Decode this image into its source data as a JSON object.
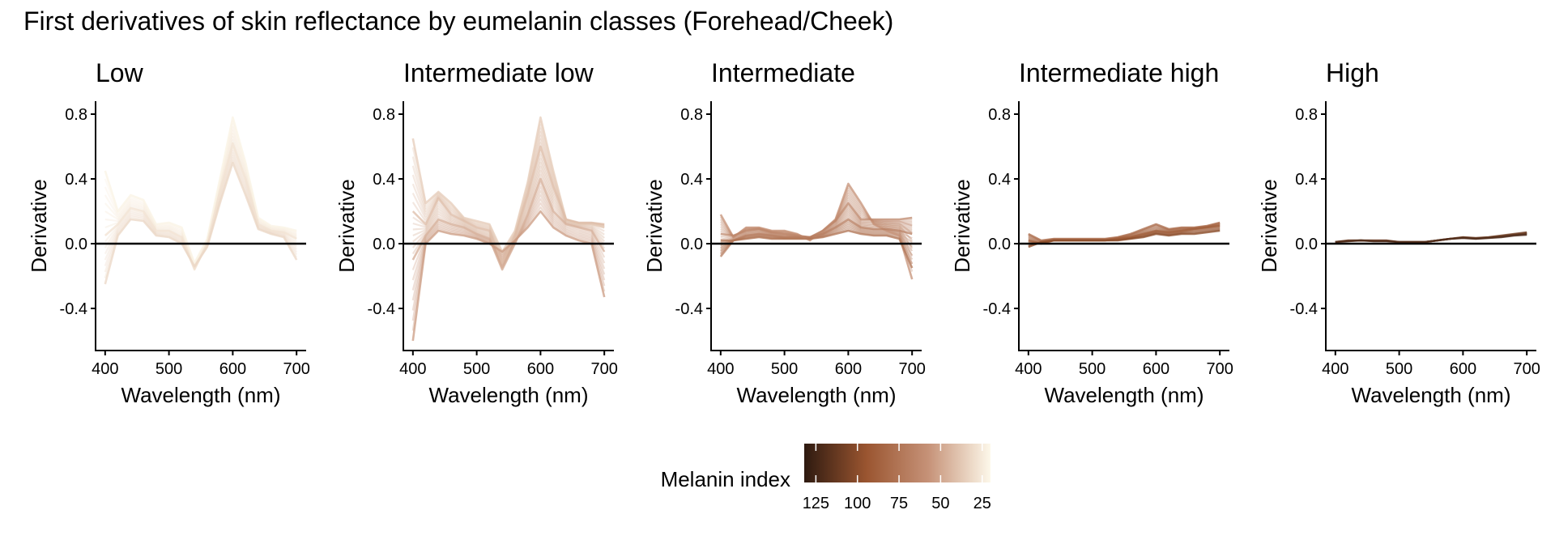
{
  "chart_data": {
    "type": "line",
    "title": "First derivatives of skin reflectance by eumelanin classes (Forehead/Cheek)",
    "xlabel": "Wavelength (nm)",
    "ylabel": "Derivative",
    "xlim": [
      385,
      715
    ],
    "ylim": [
      -0.66,
      0.88
    ],
    "x_ticks": [
      400,
      500,
      600,
      700
    ],
    "y_ticks": [
      -0.4,
      0.0,
      0.4,
      0.8
    ],
    "y_tick_labels": [
      "-0.4",
      "0.0",
      "0.4",
      "0.8"
    ],
    "reference_line_y": 0.0,
    "grid": false,
    "x_grid": [
      400,
      420,
      440,
      460,
      480,
      500,
      520,
      540,
      560,
      580,
      600,
      620,
      640,
      660,
      680,
      700
    ],
    "panels": [
      {
        "title": "Low",
        "melanin_range": [
          20,
          35
        ],
        "series": [
          {
            "melanin": 22,
            "values": [
              0.45,
              0.2,
              0.3,
              0.27,
              0.12,
              0.13,
              0.1,
              -0.12,
              0.03,
              0.4,
              0.78,
              0.5,
              0.16,
              0.11,
              0.1,
              0.08
            ]
          },
          {
            "melanin": 28,
            "values": [
              0.05,
              0.12,
              0.22,
              0.2,
              0.08,
              0.08,
              0.04,
              -0.16,
              0.0,
              0.32,
              0.62,
              0.4,
              0.12,
              0.08,
              0.07,
              0.03
            ]
          },
          {
            "melanin": 32,
            "values": [
              -0.25,
              0.05,
              0.15,
              0.14,
              0.05,
              0.04,
              0.0,
              -0.14,
              -0.02,
              0.25,
              0.5,
              0.3,
              0.09,
              0.06,
              0.04,
              -0.1
            ]
          }
        ]
      },
      {
        "title": "Intermediate low",
        "melanin_range": [
          35,
          55
        ],
        "series": [
          {
            "melanin": 36,
            "values": [
              0.65,
              0.25,
              0.32,
              0.25,
              0.16,
              0.14,
              0.12,
              -0.05,
              0.08,
              0.38,
              0.78,
              0.45,
              0.15,
              0.12,
              0.12,
              0.1
            ]
          },
          {
            "melanin": 42,
            "values": [
              0.2,
              0.12,
              0.28,
              0.18,
              0.14,
              0.1,
              0.08,
              -0.12,
              0.05,
              0.3,
              0.6,
              0.35,
              0.15,
              0.13,
              0.13,
              0.12
            ]
          },
          {
            "melanin": 48,
            "values": [
              -0.1,
              0.05,
              0.15,
              0.12,
              0.1,
              0.06,
              0.03,
              -0.16,
              0.0,
              0.18,
              0.4,
              0.2,
              0.12,
              0.1,
              0.08,
              -0.05
            ]
          },
          {
            "melanin": 54,
            "values": [
              -0.6,
              0.0,
              0.08,
              0.06,
              0.05,
              0.03,
              0.0,
              -0.05,
              0.02,
              0.1,
              0.2,
              0.1,
              0.05,
              0.02,
              0.0,
              -0.33
            ]
          }
        ]
      },
      {
        "title": "Intermediate",
        "melanin_range": [
          55,
          80
        ],
        "series": [
          {
            "melanin": 58,
            "values": [
              0.18,
              0.04,
              0.1,
              0.1,
              0.08,
              0.08,
              0.06,
              0.02,
              0.08,
              0.15,
              0.37,
              0.25,
              0.12,
              0.08,
              0.05,
              -0.22
            ]
          },
          {
            "melanin": 64,
            "values": [
              0.06,
              0.05,
              0.08,
              0.09,
              0.07,
              0.06,
              0.05,
              0.04,
              0.08,
              0.14,
              0.25,
              0.15,
              0.15,
              0.15,
              0.15,
              0.16
            ]
          },
          {
            "melanin": 70,
            "values": [
              -0.08,
              0.02,
              0.05,
              0.06,
              0.05,
              0.04,
              0.04,
              0.04,
              0.06,
              0.1,
              0.15,
              0.1,
              0.09,
              0.09,
              0.08,
              0.06
            ]
          },
          {
            "melanin": 76,
            "values": [
              0.02,
              0.02,
              0.03,
              0.04,
              0.03,
              0.03,
              0.03,
              0.03,
              0.04,
              0.06,
              0.08,
              0.06,
              0.05,
              0.05,
              0.03,
              -0.15
            ]
          }
        ]
      },
      {
        "title": "Intermediate high",
        "melanin_range": [
          80,
          105
        ],
        "series": [
          {
            "melanin": 82,
            "values": [
              0.06,
              0.02,
              0.03,
              0.03,
              0.03,
              0.03,
              0.03,
              0.04,
              0.06,
              0.09,
              0.12,
              0.09,
              0.1,
              0.1,
              0.11,
              0.13
            ]
          },
          {
            "melanin": 90,
            "values": [
              0.02,
              0.0,
              0.02,
              0.02,
              0.02,
              0.02,
              0.02,
              0.03,
              0.04,
              0.06,
              0.08,
              0.07,
              0.08,
              0.09,
              0.1,
              0.11
            ]
          },
          {
            "melanin": 100,
            "values": [
              -0.02,
              0.01,
              0.02,
              0.02,
              0.02,
              0.02,
              0.02,
              0.02,
              0.03,
              0.04,
              0.06,
              0.05,
              0.06,
              0.06,
              0.07,
              0.08
            ]
          }
        ]
      },
      {
        "title": "High",
        "melanin_range": [
          105,
          130
        ],
        "series": [
          {
            "melanin": 110,
            "values": [
              0.01,
              0.02,
              0.02,
              0.02,
              0.02,
              0.01,
              0.01,
              0.01,
              0.02,
              0.03,
              0.04,
              0.035,
              0.04,
              0.05,
              0.06,
              0.07
            ]
          },
          {
            "melanin": 122,
            "values": [
              0.01,
              0.015,
              0.02,
              0.015,
              0.015,
              0.01,
              0.01,
              0.01,
              0.02,
              0.03,
              0.035,
              0.03,
              0.035,
              0.04,
              0.05,
              0.055
            ]
          }
        ]
      }
    ],
    "legend": {
      "title": "Melanin index",
      "position": "bottom",
      "range": [
        20,
        132
      ],
      "ticks": [
        125,
        100,
        75,
        50,
        25
      ],
      "colors": [
        "#2e1a10",
        "#9a5530",
        "#c69278",
        "#fdf8ea"
      ]
    }
  }
}
